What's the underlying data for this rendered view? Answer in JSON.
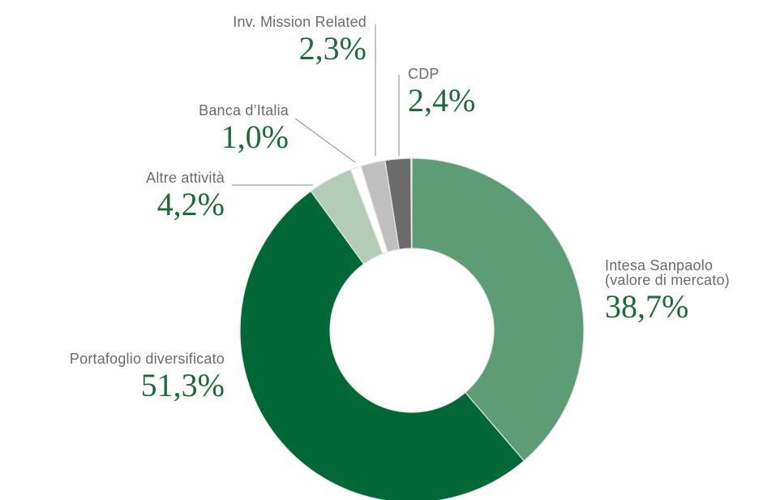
{
  "chart_data": {
    "type": "donut",
    "categories": [
      "Intesa Sanpaolo (valore di mercato)",
      "Portafoglio diversificato",
      "Altre attività",
      "Banca d’Italia",
      "Inv. Mission Related",
      "CDP"
    ],
    "values": [
      38.7,
      51.3,
      4.2,
      1.0,
      2.3,
      2.4
    ],
    "value_labels": [
      "38,7%",
      "51,3%",
      "4,2%",
      "1,0%",
      "2,3%",
      "2,4%"
    ],
    "colors": [
      "#5e9c75",
      "#006836",
      "#b2ccb8",
      "#ffffff",
      "#bfbfbf",
      "#6b6b6b"
    ]
  }
}
